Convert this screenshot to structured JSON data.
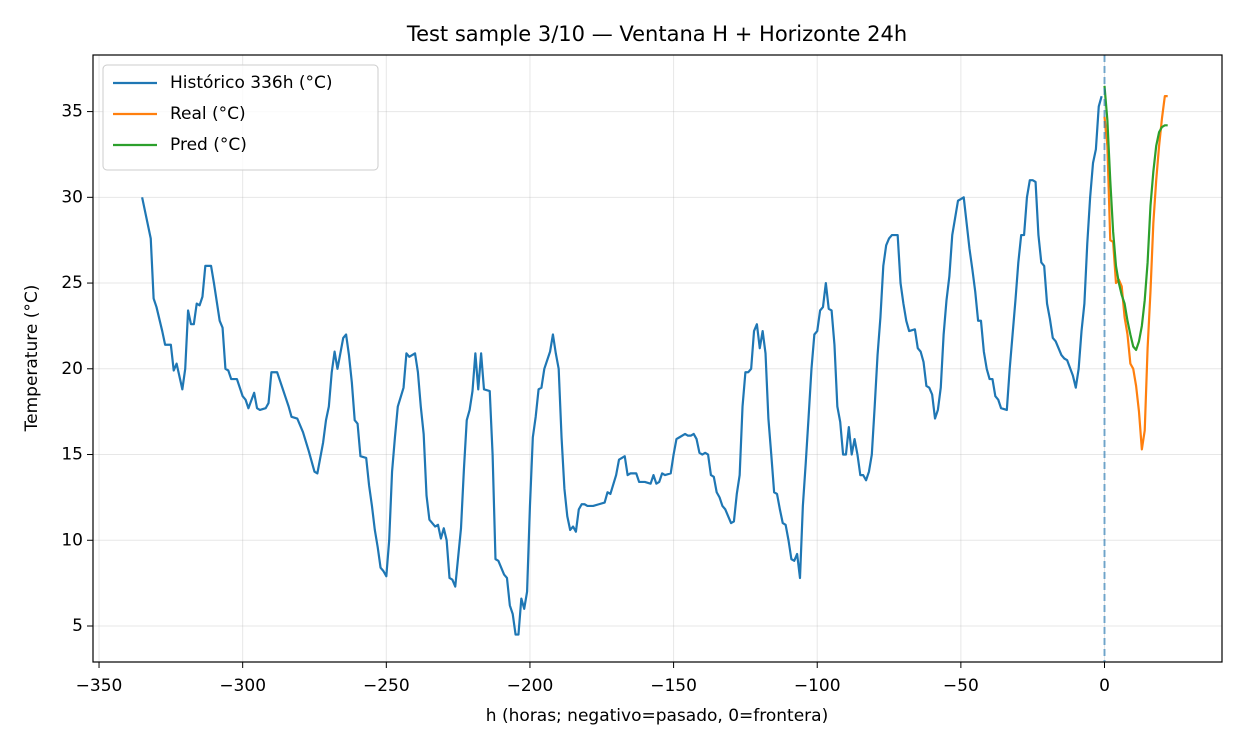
{
  "chart_data": {
    "type": "line",
    "title": "Test sample 3/10 — Ventana H + Horizonte 24h",
    "xlabel": "h (horas; negativo=pasado, 0=frontera)",
    "ylabel": "Temperature (°C)",
    "xlim": [
      -352.1,
      40.9
    ],
    "ylim": [
      2.9,
      38.3
    ],
    "xticks": [
      {
        "value": -350,
        "label": "−350"
      },
      {
        "value": -300,
        "label": "−300"
      },
      {
        "value": -250,
        "label": "−250"
      },
      {
        "value": -200,
        "label": "−200"
      },
      {
        "value": -150,
        "label": "−150"
      },
      {
        "value": -100,
        "label": "−100"
      },
      {
        "value": -50,
        "label": "−50"
      },
      0
    ],
    "yticks": [
      5,
      10,
      15,
      20,
      25,
      30,
      35
    ],
    "grid": true,
    "legend": "upper left",
    "vline": 0,
    "vline_color": "#1f77b4",
    "series": [
      {
        "name": "Histórico 336h (°C)",
        "color": "#1f77b4",
        "x": [
          -335,
          -332,
          -331,
          -330,
          -328,
          -327,
          -325,
          -324,
          -323,
          -321,
          -320,
          -319,
          -318,
          -317,
          -316,
          -315,
          -314,
          -313,
          -311,
          -310,
          -308,
          -307,
          -306,
          -305,
          -304,
          -302,
          -300,
          -299,
          -298,
          -296,
          -295,
          -294,
          -292,
          -291,
          -290,
          -288,
          -286,
          -285,
          -284,
          -283,
          -281,
          -279,
          -277,
          -275,
          -274,
          -272,
          -271,
          -270,
          -269,
          -268,
          -267,
          -265,
          -264,
          -263,
          -262,
          -261,
          -260,
          -259,
          -257,
          -256,
          -255,
          -254,
          -253,
          -252,
          -251,
          -250,
          -249,
          -248,
          -247,
          -246,
          -244,
          -243,
          -242,
          -240,
          -239,
          -238,
          -237,
          -236,
          -235,
          -233,
          -232,
          -231,
          -230,
          -229,
          -228,
          -227,
          -226,
          -224,
          -223,
          -222,
          -221,
          -220,
          -219,
          -218,
          -217,
          -216,
          -214,
          -213,
          -212,
          -211,
          -209,
          -208,
          -207,
          -206,
          -205,
          -204,
          -203,
          -202,
          -201,
          -200,
          -199,
          -198,
          -197,
          -196,
          -195,
          -193,
          -192,
          -191,
          -190,
          -189,
          -188,
          -187,
          -186,
          -185,
          -184,
          -183,
          -182,
          -181,
          -180,
          -178,
          -176,
          -174,
          -173,
          -172,
          -170,
          -169,
          -168,
          -167,
          -166,
          -165,
          -163,
          -162,
          -160,
          -158,
          -157,
          -156,
          -155,
          -154,
          -153,
          -151,
          -150,
          -149,
          -148,
          -146,
          -145,
          -144,
          -143,
          -142,
          -141,
          -140,
          -139,
          -138,
          -137,
          -136,
          -135,
          -134,
          -133,
          -132,
          -130,
          -129,
          -128,
          -127,
          -126,
          -125,
          -124,
          -123,
          -122,
          -121,
          -120,
          -119,
          -118,
          -117,
          -116,
          -115,
          -114,
          -113,
          -112,
          -111,
          -110,
          -109,
          -108,
          -107,
          -106,
          -105,
          -104,
          -103,
          -102,
          -101,
          -100,
          -99,
          -98,
          -97,
          -96,
          -95,
          -94,
          -93,
          -92,
          -91,
          -90,
          -89,
          -88,
          -87,
          -86,
          -85,
          -84,
          -83,
          -82,
          -81,
          -80,
          -79,
          -78,
          -77,
          -76,
          -75,
          -74,
          -72,
          -71,
          -70,
          -69,
          -68,
          -66,
          -65,
          -64,
          -63,
          -62,
          -61,
          -60,
          -59,
          -58,
          -57,
          -56,
          -55,
          -54,
          -53,
          -52,
          -51,
          -50,
          -49,
          -48,
          -47,
          -46,
          -45,
          -44,
          -43,
          -42,
          -41,
          -40,
          -39,
          -38,
          -37,
          -36,
          -34,
          -33,
          -32,
          -31,
          -30,
          -29,
          -28,
          -27,
          -26,
          -25,
          -24,
          -23,
          -22,
          -21,
          -20,
          -19,
          -18,
          -17,
          -16,
          -15,
          -14,
          -13,
          -11,
          -10,
          -9,
          -8,
          -7,
          -6,
          -5,
          -4,
          -3,
          -2,
          -1
        ],
        "values": [
          30.0,
          27.6,
          24.1,
          23.6,
          22.2,
          21.4,
          21.4,
          19.9,
          20.3,
          18.8,
          20.0,
          23.4,
          22.6,
          22.6,
          23.8,
          23.7,
          24.2,
          26.0,
          26.0,
          25.0,
          22.8,
          22.4,
          20.0,
          19.9,
          19.4,
          19.4,
          18.4,
          18.2,
          17.7,
          18.6,
          17.7,
          17.6,
          17.7,
          18.0,
          19.8,
          19.8,
          18.8,
          18.3,
          17.8,
          17.2,
          17.1,
          16.3,
          15.2,
          14.0,
          13.9,
          15.7,
          17.0,
          17.8,
          19.8,
          21.0,
          20.0,
          21.8,
          22.0,
          20.8,
          19.2,
          17.0,
          16.8,
          14.9,
          14.8,
          13.2,
          12.0,
          10.6,
          9.6,
          8.4,
          8.2,
          7.9,
          10.0,
          14.0,
          16.0,
          17.8,
          18.9,
          20.9,
          20.7,
          20.9,
          19.8,
          17.8,
          16.2,
          12.6,
          11.2,
          10.8,
          10.9,
          10.1,
          10.7,
          10.0,
          7.8,
          7.7,
          7.3,
          10.7,
          14.1,
          17.0,
          17.6,
          18.7,
          20.9,
          18.8,
          20.9,
          18.8,
          18.7,
          15.0,
          8.9,
          8.8,
          8.0,
          7.8,
          6.2,
          5.7,
          4.5,
          4.5,
          6.6,
          6.0,
          7.0,
          12.0,
          16.0,
          17.2,
          18.8,
          18.9,
          20.0,
          21.0,
          22.0,
          20.9,
          20.0,
          16.0,
          13.0,
          11.4,
          10.6,
          10.8,
          10.5,
          11.8,
          12.1,
          12.1,
          12.0,
          12.0,
          12.1,
          12.2,
          12.8,
          12.7,
          13.8,
          14.7,
          14.8,
          14.9,
          13.8,
          13.9,
          13.9,
          13.4,
          13.4,
          13.3,
          13.8,
          13.3,
          13.4,
          13.9,
          13.8,
          13.9,
          15.0,
          15.9,
          16.0,
          16.2,
          16.1,
          16.1,
          16.2,
          15.9,
          15.1,
          15.0,
          15.1,
          15.0,
          13.8,
          13.7,
          12.8,
          12.5,
          12.0,
          11.8,
          11.0,
          11.1,
          12.7,
          13.8,
          17.8,
          19.8,
          19.8,
          20.0,
          22.2,
          22.6,
          21.2,
          22.2,
          20.9,
          17.1,
          15.0,
          12.8,
          12.7,
          11.8,
          11.0,
          10.9,
          10.0,
          8.9,
          8.8,
          9.2,
          7.8,
          12.0,
          14.5,
          17.2,
          20.0,
          22.0,
          22.2,
          23.4,
          23.6,
          25.0,
          23.5,
          23.4,
          21.4,
          17.8,
          16.9,
          15.0,
          15.0,
          16.6,
          15.0,
          15.9,
          15.0,
          13.8,
          13.8,
          13.5,
          14.0,
          15.0,
          17.8,
          20.8,
          23.0,
          26.0,
          27.2,
          27.6,
          27.8,
          27.8,
          25.0,
          23.8,
          22.8,
          22.2,
          22.3,
          21.2,
          21.0,
          20.4,
          19.0,
          18.9,
          18.5,
          17.1,
          17.6,
          18.9,
          22.0,
          24.0,
          25.4,
          27.8,
          28.8,
          29.8,
          29.9,
          30.0,
          28.5,
          27.0,
          25.8,
          24.5,
          22.8,
          22.8,
          21.0,
          20.0,
          19.4,
          19.4,
          18.4,
          18.2,
          17.7,
          17.6,
          20.0,
          22.0,
          24.0,
          26.2,
          27.8,
          27.8,
          30.0,
          31.0,
          31.0,
          30.9,
          27.8,
          26.2,
          26.0,
          23.8,
          22.9,
          21.8,
          21.6,
          21.2,
          20.8,
          20.6,
          20.5,
          19.6,
          18.9,
          20.0,
          22.2,
          23.8,
          27.3,
          30.0,
          32.0,
          32.8,
          35.3,
          35.9
        ]
      },
      {
        "name": "Real (°C)",
        "color": "#ff7f0e",
        "x": [
          0,
          1,
          2,
          3,
          4,
          5,
          6,
          7,
          8,
          9,
          10,
          11,
          12,
          13,
          14,
          15,
          16,
          17,
          18,
          19,
          20,
          21,
          22
        ],
        "values": [
          34.7,
          33.0,
          27.5,
          27.4,
          25.0,
          25.2,
          24.8,
          23.0,
          22.0,
          20.3,
          20.0,
          19.0,
          17.5,
          15.3,
          16.4,
          21.2,
          24.5,
          28.5,
          31.0,
          33.0,
          34.6,
          35.9,
          35.9
        ]
      },
      {
        "name": "Pred (°C)",
        "color": "#2ca02c",
        "x": [
          0,
          1,
          2,
          3,
          4,
          5,
          6,
          7,
          8,
          9,
          10,
          11,
          12,
          13,
          14,
          15,
          16,
          17,
          18,
          19,
          20,
          21,
          22
        ],
        "values": [
          36.5,
          34.5,
          31.0,
          28.0,
          26.0,
          25.0,
          24.3,
          23.8,
          22.8,
          22.0,
          21.3,
          21.1,
          21.6,
          22.5,
          24.0,
          26.2,
          29.5,
          31.5,
          33.0,
          33.8,
          34.1,
          34.2,
          34.2
        ]
      }
    ]
  }
}
